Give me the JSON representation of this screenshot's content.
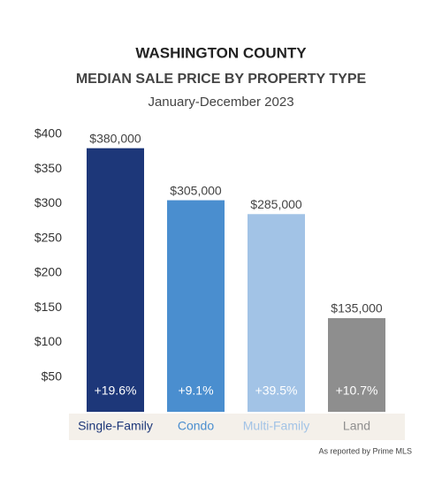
{
  "chart_data": {
    "type": "bar",
    "title": "WASHINGTON COUNTY",
    "subtitle": "MEDIAN SALE PRICE BY PROPERTY TYPE",
    "period": "January-December 2023",
    "categories": [
      "Single-Family",
      "Condo",
      "Multi-Family",
      "Land"
    ],
    "values": [
      380,
      305,
      285,
      135
    ],
    "value_labels": [
      "$380,000",
      "$305,000",
      "$285,000",
      "$135,000"
    ],
    "change_labels": [
      "+19.6%",
      "+9.1%",
      "+39.5%",
      "+10.7%"
    ],
    "colors": [
      "#1d3779",
      "#4a8ecf",
      "#a2c3e6",
      "#8e8e8e"
    ],
    "ylim": [
      0,
      400
    ],
    "yticks": [
      {
        "value": 50,
        "label": "$50"
      },
      {
        "value": 100,
        "label": "$100"
      },
      {
        "value": 150,
        "label": "$150"
      },
      {
        "value": 200,
        "label": "$200"
      },
      {
        "value": 250,
        "label": "$250"
      },
      {
        "value": 300,
        "label": "$300"
      },
      {
        "value": 350,
        "label": "$350"
      },
      {
        "value": 400,
        "label": "$400"
      }
    ],
    "grid": false,
    "source": "As reported by Prime MLS"
  }
}
